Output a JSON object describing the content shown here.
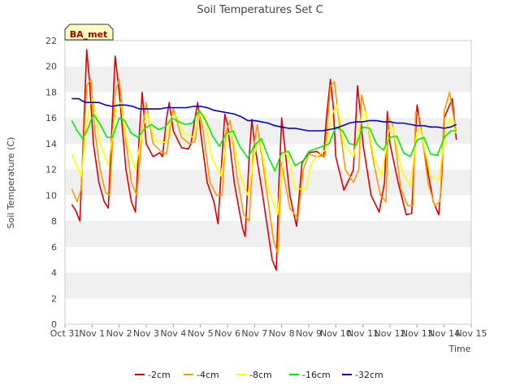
{
  "chart_data": {
    "type": "line",
    "title": "Soil Temperatures Set C",
    "xlabel": "Time",
    "ylabel": "Soil Temperature (C)",
    "site_label": "BA_met",
    "xlim": [
      0,
      15
    ],
    "ylim": [
      0,
      22
    ],
    "x_ticks": [
      {
        "label": "Oct 31",
        "value": 0
      },
      {
        "label": "Nov 1",
        "value": 1
      },
      {
        "label": "Nov 2",
        "value": 2
      },
      {
        "label": "Nov 3",
        "value": 3
      },
      {
        "label": "Nov 4",
        "value": 4
      },
      {
        "label": "Nov 5",
        "value": 5
      },
      {
        "label": "Nov 6",
        "value": 6
      },
      {
        "label": "Nov 7",
        "value": 7
      },
      {
        "label": "Nov 8",
        "value": 8
      },
      {
        "label": "Nov 9",
        "value": 9
      },
      {
        "label": "Nov 10",
        "value": 10
      },
      {
        "label": "Nov 11",
        "value": 11
      },
      {
        "label": "Nov 12",
        "value": 12
      },
      {
        "label": "Nov 13",
        "value": 13
      },
      {
        "label": "Nov 14",
        "value": 14
      },
      {
        "label": "Nov 15",
        "value": 15
      }
    ],
    "y_ticks": [
      0,
      2,
      4,
      6,
      8,
      10,
      12,
      14,
      16,
      18,
      20,
      22
    ],
    "grid": "horizontal bands",
    "legend_position": "bottom",
    "series": [
      {
        "name": "-2cm",
        "color": "#dd0000",
        "x": [
          0.25,
          0.4,
          0.55,
          0.65,
          0.8,
          0.9,
          1.05,
          1.25,
          1.45,
          1.6,
          1.75,
          1.85,
          2.0,
          2.25,
          2.45,
          2.6,
          2.75,
          2.85,
          3.0,
          3.25,
          3.5,
          3.6,
          3.75,
          3.85,
          4.0,
          4.3,
          4.55,
          4.65,
          4.8,
          4.9,
          5.0,
          5.25,
          5.5,
          5.65,
          5.8,
          5.9,
          6.0,
          6.25,
          6.55,
          6.65,
          6.8,
          6.9,
          7.0,
          7.3,
          7.65,
          7.8,
          7.9,
          8.0,
          8.3,
          8.55,
          8.75,
          9.0,
          9.3,
          9.55,
          9.65,
          9.8,
          9.9,
          10.0,
          10.3,
          10.55,
          10.65,
          10.8,
          10.9,
          11.0,
          11.3,
          11.6,
          11.8,
          11.9,
          12.0,
          12.3,
          12.6,
          12.8,
          12.9,
          13.0,
          13.3,
          13.6,
          13.8,
          13.9,
          14.0,
          14.3,
          14.45
        ],
        "y": [
          9.3,
          8.8,
          8.0,
          13.0,
          21.3,
          19.0,
          14.0,
          11.0,
          9.5,
          9.0,
          16.0,
          20.8,
          18.0,
          12.0,
          9.5,
          8.7,
          15.0,
          18.0,
          14.0,
          13.0,
          13.3,
          13.0,
          16.0,
          17.2,
          15.0,
          13.7,
          13.6,
          14.0,
          16.0,
          17.2,
          15.0,
          11.0,
          9.5,
          7.8,
          13.0,
          16.3,
          15.5,
          11.0,
          7.5,
          6.8,
          13.0,
          15.9,
          14.0,
          10.0,
          5.0,
          4.2,
          11.0,
          16.0,
          10.0,
          7.6,
          12.5,
          13.3,
          13.4,
          13.0,
          16.0,
          19.0,
          17.0,
          13.0,
          10.4,
          11.5,
          12.0,
          18.5,
          16.5,
          14.0,
          10.0,
          8.7,
          11.0,
          16.5,
          14.0,
          11.0,
          8.5,
          8.6,
          13.0,
          17.0,
          13.0,
          9.5,
          8.5,
          11.0,
          16.0,
          17.5,
          14.3
        ]
      },
      {
        "name": "-4cm",
        "color": "#ff9900",
        "x": [
          0.25,
          0.45,
          0.6,
          0.8,
          0.95,
          1.1,
          1.3,
          1.5,
          1.65,
          1.85,
          2.0,
          2.2,
          2.45,
          2.65,
          2.85,
          3.0,
          3.25,
          3.55,
          3.75,
          3.9,
          4.0,
          4.3,
          4.6,
          4.8,
          4.95,
          5.1,
          5.35,
          5.6,
          5.8,
          5.95,
          6.1,
          6.35,
          6.6,
          6.8,
          6.95,
          7.1,
          7.4,
          7.7,
          7.85,
          8.0,
          8.3,
          8.6,
          8.8,
          9.0,
          9.3,
          9.6,
          9.8,
          9.95,
          10.1,
          10.35,
          10.65,
          10.85,
          10.95,
          11.1,
          11.4,
          11.65,
          11.85,
          11.95,
          12.1,
          12.4,
          12.65,
          12.85,
          12.95,
          13.1,
          13.4,
          13.65,
          13.85,
          14.0,
          14.2,
          14.45
        ],
        "y": [
          10.5,
          9.5,
          10.5,
          18.5,
          19.0,
          15.0,
          12.0,
          10.2,
          10.0,
          18.0,
          19.0,
          15.0,
          11.0,
          10.0,
          15.0,
          17.2,
          14.0,
          13.4,
          13.2,
          15.5,
          16.8,
          14.5,
          14.0,
          14.2,
          16.5,
          15.0,
          11.0,
          10.0,
          10.0,
          15.0,
          15.8,
          11.5,
          8.5,
          8.0,
          13.5,
          15.5,
          11.0,
          6.5,
          5.5,
          12.5,
          9.0,
          8.2,
          12.0,
          13.2,
          13.0,
          13.1,
          18.5,
          18.8,
          16.0,
          12.0,
          11.0,
          12.0,
          17.8,
          16.5,
          12.5,
          10.0,
          9.5,
          16.0,
          15.5,
          10.5,
          9.2,
          9.2,
          16.5,
          16.0,
          11.0,
          9.2,
          9.5,
          16.5,
          18.0,
          14.8
        ]
      },
      {
        "name": "-8cm",
        "color": "#ffff00",
        "x": [
          0.25,
          0.6,
          0.9,
          1.05,
          1.3,
          1.6,
          1.9,
          2.05,
          2.3,
          2.6,
          2.9,
          3.05,
          3.3,
          3.7,
          3.95,
          4.1,
          4.4,
          4.75,
          5.0,
          5.15,
          5.4,
          5.75,
          6.0,
          6.15,
          6.45,
          6.75,
          7.05,
          7.2,
          7.5,
          7.85,
          8.05,
          8.2,
          8.5,
          8.9,
          9.1,
          9.3,
          9.6,
          9.9,
          10.05,
          10.3,
          10.65,
          10.95,
          11.1,
          11.4,
          11.7,
          11.95,
          12.1,
          12.45,
          12.75,
          13.0,
          13.1,
          13.5,
          13.8,
          14.05,
          14.2,
          14.45
        ],
        "y": [
          13.2,
          11.5,
          17.0,
          17.5,
          14.0,
          12.3,
          17.0,
          17.2,
          14.0,
          12.0,
          15.5,
          16.3,
          14.3,
          14.1,
          16.2,
          16.2,
          14.8,
          14.5,
          16.4,
          16.2,
          13.0,
          11.5,
          14.7,
          15.0,
          11.8,
          10.0,
          13.8,
          14.3,
          10.5,
          8.5,
          13.0,
          13.5,
          10.5,
          10.5,
          12.5,
          13.0,
          13.5,
          16.5,
          17.0,
          14.0,
          13.0,
          16.0,
          16.5,
          13.0,
          11.5,
          15.0,
          15.3,
          11.8,
          10.7,
          15.0,
          15.3,
          11.5,
          11.2,
          15.0,
          16.0,
          14.8
        ]
      },
      {
        "name": "-16cm",
        "color": "#00ee00",
        "x": [
          0.25,
          0.45,
          0.65,
          0.85,
          1.05,
          1.3,
          1.55,
          1.75,
          2.0,
          2.2,
          2.45,
          2.7,
          2.95,
          3.2,
          3.45,
          3.7,
          3.95,
          4.2,
          4.45,
          4.7,
          4.95,
          5.2,
          5.45,
          5.7,
          5.95,
          6.2,
          6.45,
          6.75,
          7.0,
          7.25,
          7.5,
          7.75,
          8.0,
          8.25,
          8.5,
          8.8,
          9.0,
          9.25,
          9.5,
          9.75,
          10.0,
          10.25,
          10.5,
          10.75,
          11.0,
          11.25,
          11.5,
          11.75,
          12.0,
          12.25,
          12.5,
          12.75,
          13.0,
          13.25,
          13.5,
          13.75,
          14.0,
          14.25,
          14.45
        ],
        "y": [
          15.8,
          15.0,
          14.4,
          15.2,
          16.3,
          15.5,
          14.5,
          14.5,
          16.0,
          15.8,
          14.8,
          14.5,
          15.2,
          15.5,
          15.1,
          15.3,
          16.0,
          15.7,
          15.5,
          15.6,
          16.6,
          15.8,
          14.6,
          13.8,
          14.8,
          15.0,
          13.8,
          12.9,
          13.9,
          14.4,
          13.0,
          11.9,
          13.3,
          13.4,
          12.3,
          12.7,
          13.4,
          13.6,
          13.8,
          14.0,
          15.3,
          15.0,
          14.0,
          13.9,
          15.3,
          15.2,
          14.0,
          13.5,
          14.5,
          14.6,
          13.3,
          13.0,
          14.3,
          14.5,
          13.2,
          13.1,
          14.5,
          15.0,
          15.0
        ]
      },
      {
        "name": "-32cm",
        "color": "#0000cc",
        "x": [
          0.25,
          0.5,
          0.75,
          1.0,
          1.25,
          1.5,
          1.75,
          2.0,
          2.25,
          2.5,
          2.75,
          3.0,
          3.25,
          3.5,
          3.75,
          4.0,
          4.25,
          4.5,
          4.75,
          5.0,
          5.25,
          5.5,
          5.75,
          6.0,
          6.25,
          6.5,
          6.75,
          7.0,
          7.25,
          7.5,
          7.75,
          8.0,
          8.25,
          8.5,
          8.75,
          9.0,
          9.25,
          9.5,
          9.75,
          10.0,
          10.25,
          10.5,
          10.75,
          11.0,
          11.25,
          11.5,
          11.75,
          12.0,
          12.25,
          12.5,
          12.75,
          13.0,
          13.25,
          13.5,
          13.75,
          14.0,
          14.25,
          14.45
        ],
        "y": [
          17.5,
          17.5,
          17.2,
          17.2,
          17.2,
          17.0,
          16.9,
          17.0,
          17.0,
          16.9,
          16.7,
          16.7,
          16.7,
          16.7,
          16.8,
          16.8,
          16.8,
          16.8,
          16.9,
          16.9,
          16.8,
          16.6,
          16.5,
          16.4,
          16.3,
          16.1,
          15.8,
          15.8,
          15.7,
          15.6,
          15.4,
          15.3,
          15.2,
          15.2,
          15.1,
          15.0,
          15.0,
          15.0,
          15.1,
          15.2,
          15.4,
          15.6,
          15.7,
          15.7,
          15.8,
          15.8,
          15.7,
          15.7,
          15.6,
          15.6,
          15.5,
          15.4,
          15.4,
          15.3,
          15.3,
          15.2,
          15.3,
          15.5
        ]
      }
    ]
  }
}
